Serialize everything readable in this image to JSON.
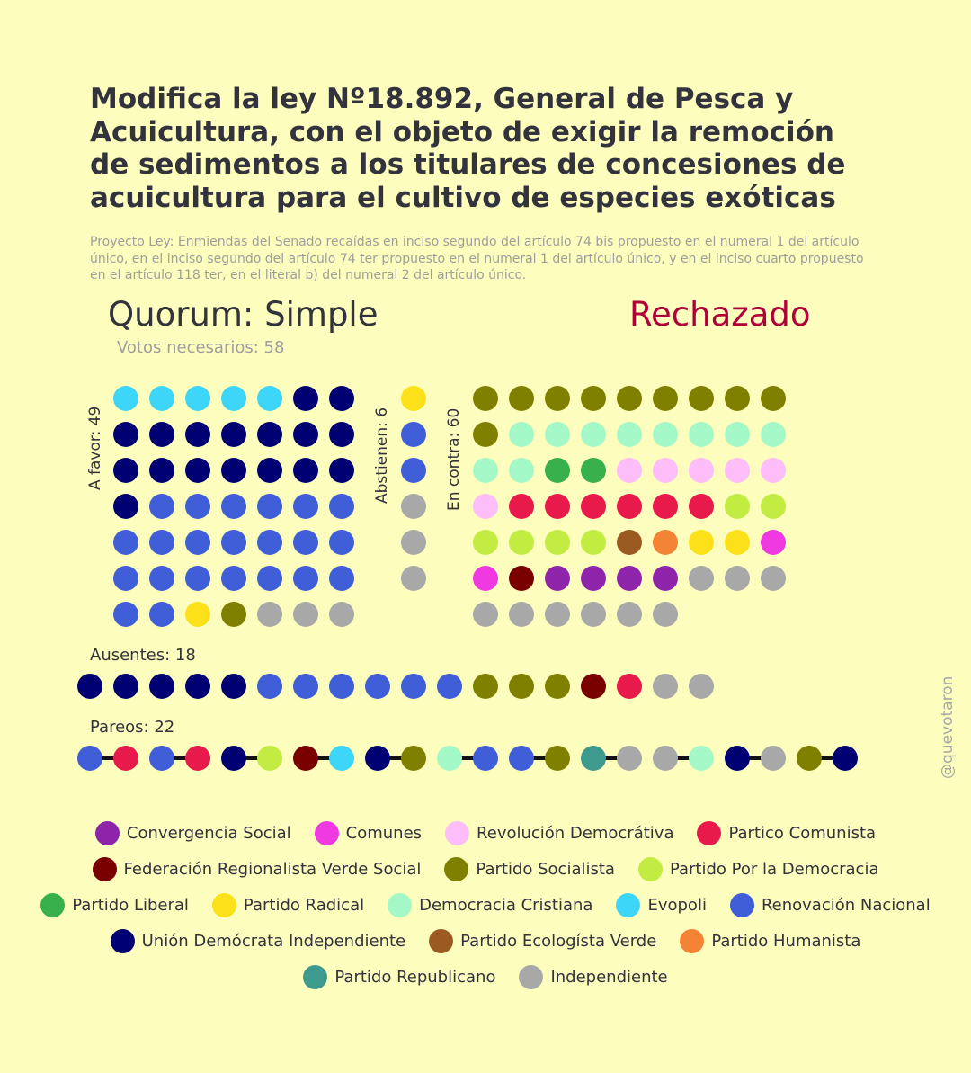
{
  "title": "Modifica la ley Nº18.892, General de Pesca y Acuicultura, con el objeto de exigir la remoción de sedimentos a los titulares de concesiones de acuicultura para el cultivo de especies exóticas",
  "subtitle": "Proyecto Ley: Enmiendas del Senado recaídas en inciso segundo del artículo 74 bis propuesto en el numeral 1 del artículo único, en el inciso segundo del artículo 74 ter propuesto en el numeral 1 del artículo único, y en el inciso cuarto propuesto en el artículo 118 ter, en el literal b) del numeral 2 del artículo único.",
  "quorum": "Quorum: Simple",
  "result": "Rechazado",
  "result_color": "#b0003a",
  "votes_needed": "Votos necesarios: 58",
  "watermark": "@quevotaron",
  "chart_data": {
    "type": "waffle",
    "parties": {
      "CS": {
        "name": "Convergencia Social",
        "color": "#8e24aa"
      },
      "COM": {
        "name": "Comunes",
        "color": "#ee3ae0"
      },
      "RD": {
        "name": "Revolución Democrátiva",
        "color": "#fcbdf8"
      },
      "PC": {
        "name": "Partico Comunista",
        "color": "#e8194b"
      },
      "FRVS": {
        "name": "Federación Regionalista Verde Social",
        "color": "#7a0000"
      },
      "PS": {
        "name": "Partido Socialista",
        "color": "#7f7f00"
      },
      "PPD": {
        "name": "Partido Por la Democracia",
        "color": "#c2ec42"
      },
      "PL": {
        "name": "Partido Liberal",
        "color": "#38b04c"
      },
      "PR": {
        "name": "Partido Radical",
        "color": "#fce01a"
      },
      "DC": {
        "name": "Democracia Cristiana",
        "color": "#a4f8c8"
      },
      "EVO": {
        "name": "Evopoli",
        "color": "#3ed6f8"
      },
      "RN": {
        "name": "Renovación Nacional",
        "color": "#3f5ed8"
      },
      "UDI": {
        "name": "Unión Demócrata Independiente",
        "color": "#000072"
      },
      "PEV": {
        "name": "Partido Ecologísta Verde",
        "color": "#9a5a22"
      },
      "PH": {
        "name": "Partido Humanista",
        "color": "#f38436"
      },
      "REP": {
        "name": "Partido Republicano",
        "color": "#3f9a8e"
      },
      "IND": {
        "name": "Independiente",
        "color": "#a8a8a8"
      }
    },
    "legend_rows": [
      [
        "CS",
        "COM",
        "RD",
        "PC"
      ],
      [
        "FRVS",
        "PS",
        "PPD"
      ],
      [
        "PL",
        "PR",
        "DC",
        "EVO",
        "RN"
      ],
      [
        "UDI",
        "PEV",
        "PH"
      ],
      [
        "REP",
        "IND"
      ]
    ],
    "groups": {
      "favor": {
        "label": "A favor: 49",
        "columns": 7,
        "seats": [
          "EVO",
          "EVO",
          "EVO",
          "EVO",
          "EVO",
          "UDI",
          "UDI",
          "UDI",
          "UDI",
          "UDI",
          "UDI",
          "UDI",
          "UDI",
          "UDI",
          "UDI",
          "UDI",
          "UDI",
          "UDI",
          "UDI",
          "UDI",
          "UDI",
          "UDI",
          "RN",
          "RN",
          "RN",
          "RN",
          "RN",
          "RN",
          "RN",
          "RN",
          "RN",
          "RN",
          "RN",
          "RN",
          "RN",
          "RN",
          "RN",
          "RN",
          "RN",
          "RN",
          "RN",
          "RN",
          "RN",
          "RN",
          "PR",
          "PS",
          "IND",
          "IND",
          "IND"
        ]
      },
      "abstain": {
        "label": "Abstienen: 6",
        "columns": 1,
        "seats": [
          "PR",
          "RN",
          "RN",
          "IND",
          "IND",
          "IND"
        ]
      },
      "contra": {
        "label": "En contra: 60",
        "columns": 9,
        "seats": [
          "PS",
          "PS",
          "PS",
          "PS",
          "PS",
          "PS",
          "PS",
          "PS",
          "PS",
          "PS",
          "DC",
          "DC",
          "DC",
          "DC",
          "DC",
          "DC",
          "DC",
          "DC",
          "DC",
          "DC",
          "PL",
          "PL",
          "RD",
          "RD",
          "RD",
          "RD",
          "RD",
          "RD",
          "PC",
          "PC",
          "PC",
          "PC",
          "PC",
          "PC",
          "PPD",
          "PPD",
          "PPD",
          "PPD",
          "PPD",
          "PPD",
          "PEV",
          "PH",
          "PR",
          "PR",
          "COM",
          "COM",
          "FRVS",
          "CS",
          "CS",
          "CS",
          "CS",
          "IND",
          "IND",
          "IND",
          "IND",
          "IND",
          "IND",
          "IND",
          "IND",
          "IND"
        ]
      },
      "absent": {
        "label": "Ausentes: 18",
        "seats": [
          "UDI",
          "UDI",
          "UDI",
          "UDI",
          "UDI",
          "RN",
          "RN",
          "RN",
          "RN",
          "RN",
          "RN",
          "PS",
          "PS",
          "PS",
          "FRVS",
          "PC",
          "IND",
          "IND"
        ]
      },
      "paired": {
        "label": "Pareos: 22",
        "seats": [
          "RN",
          "PC",
          "RN",
          "PC",
          "UDI",
          "PPD",
          "FRVS",
          "EVO",
          "UDI",
          "PS",
          "DC",
          "RN",
          "RN",
          "PS",
          "REP",
          "IND",
          "IND",
          "DC",
          "UDI",
          "IND",
          "PS",
          "UDI"
        ]
      }
    },
    "totals": {
      "favor": 49,
      "abstain": 6,
      "contra": 60,
      "absent": 18,
      "paired": 22
    }
  }
}
